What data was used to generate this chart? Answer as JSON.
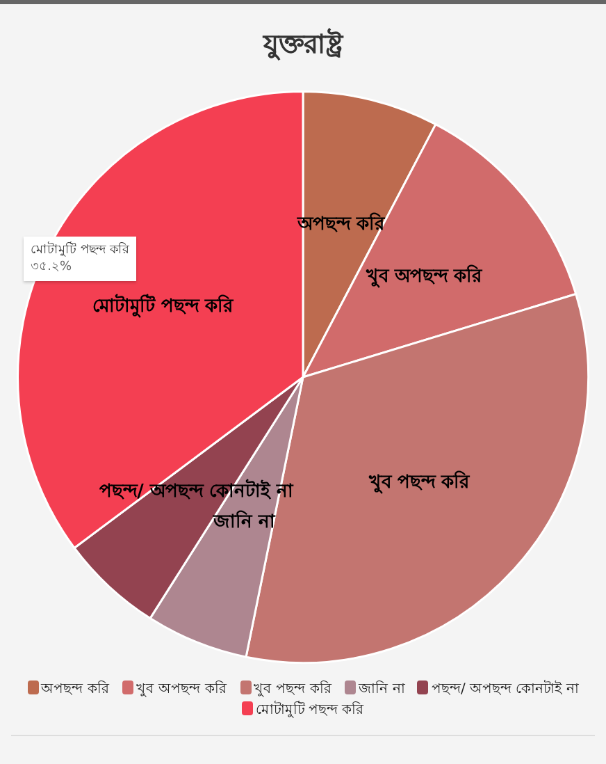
{
  "chart_data": {
    "type": "pie",
    "title": "যুক্তরাষ্ট্র",
    "categories": [
      "অপছন্দ করি",
      "খুব অপছন্দ করি",
      "খুব পছন্দ করি",
      "জানি না",
      "পছন্দ/ অপছন্দ কোনটাই না",
      "মোটামুটি পছন্দ করি"
    ],
    "values": [
      7.7,
      12.6,
      32.9,
      5.8,
      5.8,
      35.2
    ],
    "colors": [
      "#bd6b4f",
      "#d16b6b",
      "#c37570",
      "#ae8690",
      "#934350",
      "#f43f52"
    ],
    "value_labels": [
      null,
      null,
      null,
      null,
      null,
      "৩৫.২%"
    ],
    "legend": "bottom"
  }
}
